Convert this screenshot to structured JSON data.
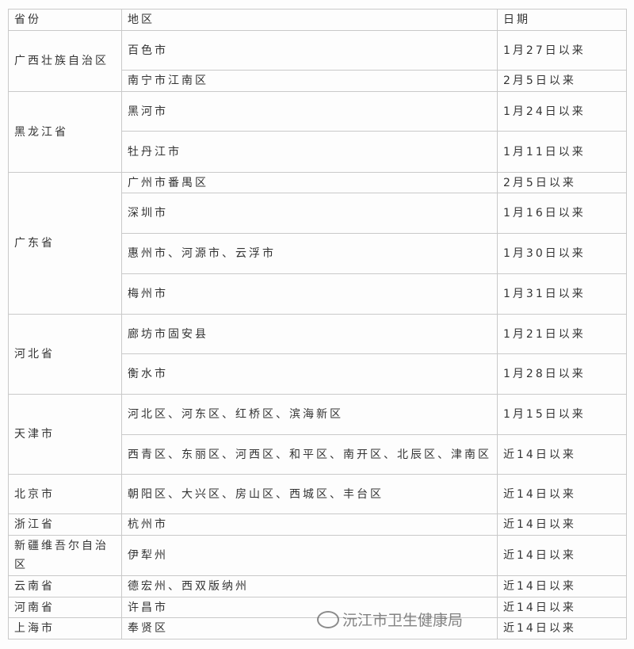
{
  "headers": {
    "province": "省份",
    "region": "地区",
    "date": "日期"
  },
  "rows": [
    {
      "province": "广西壮族自治区",
      "region": "百色市",
      "date": "1月27日以来"
    },
    {
      "region": "南宁市江南区",
      "date": "2月5日以来"
    },
    {
      "province": "黑龙江省",
      "region": "黑河市",
      "date": "1月24日以来"
    },
    {
      "region": "牡丹江市",
      "date": "1月11日以来"
    },
    {
      "province": "广东省",
      "region": "广州市番禺区",
      "date": "2月5日以来"
    },
    {
      "region": "深圳市",
      "date": "1月16日以来"
    },
    {
      "region": "惠州市、河源市、云浮市",
      "date": "1月30日以来"
    },
    {
      "region": "梅州市",
      "date": "1月31日以来"
    },
    {
      "province": "河北省",
      "region": "廊坊市固安县",
      "date": "1月21日以来"
    },
    {
      "region": "衡水市",
      "date": "1月28日以来"
    },
    {
      "province": "天津市",
      "region": "河北区、河东区、红桥区、滨海新区",
      "date": "1月15日以来"
    },
    {
      "region": "西青区、东丽区、河西区、和平区、南开区、北辰区、津南区",
      "date": "近14日以来"
    },
    {
      "province": "北京市",
      "region": "朝阳区、大兴区、房山区、西城区、丰台区",
      "date": "近14日以来"
    },
    {
      "province": "浙江省",
      "region": "杭州市",
      "date": "近14日以来"
    },
    {
      "province": "新疆维吾尔自治区",
      "region": "伊犁州",
      "date": "近14日以来"
    },
    {
      "province": "云南省",
      "region": "德宏州、西双版纳州",
      "date": "近14日以来"
    },
    {
      "province": "河南省",
      "region": "许昌市",
      "date": "近14日以来"
    },
    {
      "province": "上海市",
      "region": "奉贤区",
      "date": "近14日以来"
    }
  ],
  "watermark": "沅江市卫生健康局"
}
